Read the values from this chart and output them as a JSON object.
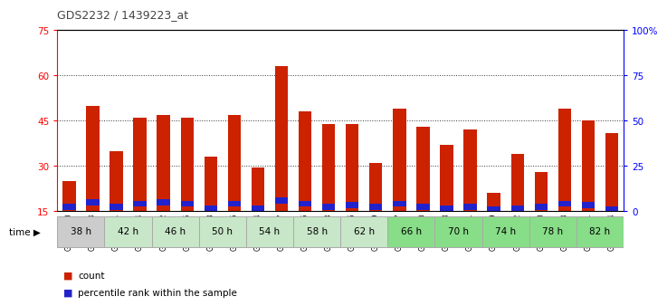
{
  "title": "GDS2232 / 1439223_at",
  "samples": [
    "GSM96630",
    "GSM96923",
    "GSM96631",
    "GSM96924",
    "GSM96632",
    "GSM96925",
    "GSM96633",
    "GSM96926",
    "GSM96634",
    "GSM96927",
    "GSM96635",
    "GSM96928",
    "GSM96636",
    "GSM96929",
    "GSM96637",
    "GSM96930",
    "GSM96638",
    "GSM96931",
    "GSM96639",
    "GSM96932",
    "GSM96640",
    "GSM96933",
    "GSM96641",
    "GSM96934"
  ],
  "time_groups": [
    {
      "label": "38 h",
      "indices": [
        0,
        1
      ],
      "color": "#cccccc"
    },
    {
      "label": "42 h",
      "indices": [
        2,
        3
      ],
      "color": "#c8e6c8"
    },
    {
      "label": "46 h",
      "indices": [
        4,
        5
      ],
      "color": "#c8e6c8"
    },
    {
      "label": "50 h",
      "indices": [
        6,
        7
      ],
      "color": "#c8e6c8"
    },
    {
      "label": "54 h",
      "indices": [
        8,
        9
      ],
      "color": "#c8e6c8"
    },
    {
      "label": "58 h",
      "indices": [
        10,
        11
      ],
      "color": "#c8e6c8"
    },
    {
      "label": "62 h",
      "indices": [
        12,
        13
      ],
      "color": "#c8e6c8"
    },
    {
      "label": "66 h",
      "indices": [
        14,
        15
      ],
      "color": "#88dd88"
    },
    {
      "label": "70 h",
      "indices": [
        16,
        17
      ],
      "color": "#88dd88"
    },
    {
      "label": "74 h",
      "indices": [
        18,
        19
      ],
      "color": "#88dd88"
    },
    {
      "label": "78 h",
      "indices": [
        20,
        21
      ],
      "color": "#88dd88"
    },
    {
      "label": "82 h",
      "indices": [
        22,
        23
      ],
      "color": "#88dd88"
    }
  ],
  "count_values": [
    25,
    50,
    35,
    46,
    47,
    46,
    33,
    47,
    29.5,
    63,
    48,
    44,
    44,
    31,
    49,
    43,
    37,
    42,
    21,
    34,
    28,
    49,
    45,
    41
  ],
  "pct_bottom": [
    15.5,
    17.0,
    15.5,
    16.5,
    17.0,
    16.5,
    15.0,
    16.5,
    15.0,
    17.5,
    16.5,
    15.5,
    16.0,
    15.5,
    16.5,
    15.5,
    15.0,
    15.5,
    14.5,
    15.0,
    15.5,
    16.5,
    16.0,
    14.5
  ],
  "pct_height": [
    2.0,
    2.0,
    2.0,
    2.0,
    2.0,
    2.0,
    2.0,
    2.0,
    2.0,
    2.0,
    2.0,
    2.0,
    2.0,
    2.0,
    2.0,
    2.0,
    2.0,
    2.0,
    2.0,
    2.0,
    2.0,
    2.0,
    2.0,
    2.0
  ],
  "ylim_left": [
    15,
    75
  ],
  "yticks_left": [
    15,
    30,
    45,
    60,
    75
  ],
  "yticks_right": [
    0,
    25,
    50,
    75,
    100
  ],
  "ytick_labels_right": [
    "0",
    "25",
    "50",
    "75",
    "100%"
  ],
  "bar_color": "#cc2200",
  "blue_color": "#2222cc",
  "bg_color": "#ffffff",
  "grid_color": "#333333",
  "bar_width": 0.55,
  "legend_count": "count",
  "legend_pct": "percentile rank within the sample"
}
